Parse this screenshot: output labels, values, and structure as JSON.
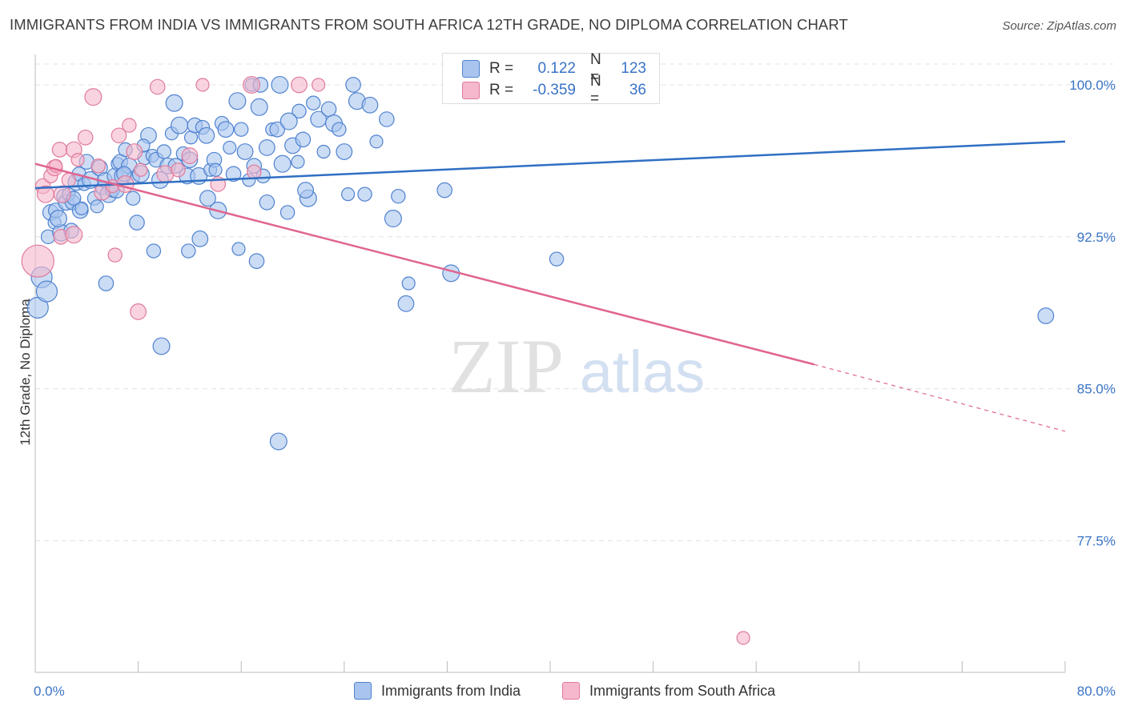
{
  "title": "IMMIGRANTS FROM INDIA VS IMMIGRANTS FROM SOUTH AFRICA 12TH GRADE, NO DIPLOMA CORRELATION CHART",
  "source": "Source: ZipAtlas.com",
  "watermark": {
    "zip": "ZIP",
    "atlas": "atlas"
  },
  "legend": {
    "rows": [
      {
        "r_label": "R =",
        "r_value": "0.122",
        "n_label": "N =",
        "n_value": "123"
      },
      {
        "r_label": "R =",
        "r_value": "-0.359",
        "n_label": "N =",
        "n_value": "36"
      }
    ]
  },
  "bottom_legend": [
    "Immigrants from India",
    "Immigrants from South Africa"
  ],
  "colors": {
    "india_fill": "#a9c4ee",
    "india_stroke": "#4f82cf",
    "india_line": "#2f6fc4",
    "sa_fill": "#f5b8cc",
    "sa_stroke": "#e07a9c",
    "sa_line": "#e0648f",
    "tick_label": "#3a73c6",
    "grid": "#e3e3e3"
  },
  "chart_data": {
    "type": "scatter",
    "xlabel": "",
    "ylabel": "12th Grade, No Diploma",
    "xlim": [
      0,
      80
    ],
    "ylim": [
      71,
      101.5
    ],
    "x_tick_labels": [
      {
        "value": 0,
        "label": "0.0%"
      },
      {
        "value": 80,
        "label": "80.0%"
      }
    ],
    "y_tick_labels": [
      {
        "value": 100,
        "label": "100.0%"
      },
      {
        "value": 92.5,
        "label": "92.5%"
      },
      {
        "value": 85,
        "label": "85.0%"
      },
      {
        "value": 77.5,
        "label": "77.5%"
      }
    ],
    "grid": true,
    "legend_position": "top-center",
    "series": [
      {
        "name": "Immigrants from India",
        "trend": {
          "x": [
            0,
            80
          ],
          "y": [
            94.9,
            97.2
          ]
        },
        "points": [
          [
            0.2,
            89.0
          ],
          [
            0.5,
            90.5
          ],
          [
            0.9,
            89.8
          ],
          [
            1.0,
            92.5
          ],
          [
            1.2,
            93.7
          ],
          [
            1.5,
            93.2
          ],
          [
            1.6,
            93.8
          ],
          [
            2.0,
            92.7
          ],
          [
            2.2,
            94.5
          ],
          [
            2.4,
            94.2
          ],
          [
            2.6,
            94.6
          ],
          [
            2.9,
            94.2
          ],
          [
            3.2,
            95.2
          ],
          [
            3.4,
            95.6
          ],
          [
            3.5,
            93.8
          ],
          [
            3.8,
            95.1
          ],
          [
            4.0,
            96.2
          ],
          [
            4.3,
            95.3
          ],
          [
            4.6,
            94.4
          ],
          [
            5.0,
            95.9
          ],
          [
            5.2,
            94.9
          ],
          [
            5.4,
            95.3
          ],
          [
            5.7,
            94.6
          ],
          [
            6.0,
            94.8
          ],
          [
            6.2,
            95.5
          ],
          [
            6.4,
            96.1
          ],
          [
            6.6,
            96.2
          ],
          [
            6.8,
            95.5
          ],
          [
            7.0,
            96.8
          ],
          [
            7.3,
            96.0
          ],
          [
            7.6,
            95.4
          ],
          [
            7.9,
            93.2
          ],
          [
            8.2,
            95.6
          ],
          [
            8.5,
            96.4
          ],
          [
            8.8,
            97.5
          ],
          [
            9.1,
            96.5
          ],
          [
            9.4,
            96.3
          ],
          [
            9.7,
            95.3
          ],
          [
            10.0,
            96.7
          ],
          [
            10.3,
            96.0
          ],
          [
            10.6,
            97.6
          ],
          [
            10.9,
            96.0
          ],
          [
            11.2,
            98.0
          ],
          [
            11.5,
            96.6
          ],
          [
            11.8,
            95.5
          ],
          [
            12.1,
            97.4
          ],
          [
            12.4,
            98.0
          ],
          [
            12.7,
            95.5
          ],
          [
            13.0,
            97.9
          ],
          [
            13.3,
            97.5
          ],
          [
            13.6,
            95.8
          ],
          [
            13.9,
            96.3
          ],
          [
            14.2,
            93.8
          ],
          [
            14.5,
            98.1
          ],
          [
            14.8,
            97.8
          ],
          [
            15.1,
            96.9
          ],
          [
            15.4,
            95.6
          ],
          [
            15.7,
            99.2
          ],
          [
            16.0,
            97.8
          ],
          [
            16.3,
            96.7
          ],
          [
            16.6,
            95.3
          ],
          [
            17.0,
            96.0
          ],
          [
            17.4,
            98.9
          ],
          [
            17.7,
            95.5
          ],
          [
            18.0,
            96.9
          ],
          [
            18.4,
            97.8
          ],
          [
            18.8,
            97.8
          ],
          [
            19.2,
            96.1
          ],
          [
            19.6,
            93.7
          ],
          [
            20.0,
            97.0
          ],
          [
            20.4,
            96.2
          ],
          [
            20.8,
            97.3
          ],
          [
            21.2,
            94.4
          ],
          [
            21.6,
            99.1
          ],
          [
            22.0,
            98.3
          ],
          [
            22.4,
            96.7
          ],
          [
            22.8,
            98.8
          ],
          [
            23.2,
            98.1
          ],
          [
            23.6,
            97.8
          ],
          [
            24.0,
            96.7
          ],
          [
            24.3,
            94.6
          ],
          [
            24.7,
            100.0
          ],
          [
            25.0,
            99.2
          ],
          [
            25.6,
            94.6
          ],
          [
            26.0,
            99.0
          ],
          [
            26.5,
            97.2
          ],
          [
            27.3,
            98.3
          ],
          [
            27.8,
            93.4
          ],
          [
            28.2,
            94.5
          ],
          [
            28.8,
            89.2
          ],
          [
            29.0,
            90.2
          ],
          [
            31.8,
            94.8
          ],
          [
            32.3,
            90.7
          ],
          [
            40.5,
            91.4
          ],
          [
            78.5,
            88.6
          ],
          [
            3.6,
            93.9
          ],
          [
            5.5,
            90.2
          ],
          [
            9.8,
            87.1
          ],
          [
            11.9,
            91.8
          ],
          [
            12.8,
            92.4
          ],
          [
            15.8,
            91.9
          ],
          [
            17.2,
            91.3
          ],
          [
            18.9,
            82.4
          ],
          [
            9.2,
            91.8
          ],
          [
            13.4,
            94.4
          ],
          [
            16.8,
            100.0
          ],
          [
            17.5,
            100.0
          ],
          [
            19.0,
            100.0
          ],
          [
            20.5,
            98.7
          ],
          [
            21.0,
            94.8
          ],
          [
            8.4,
            97.0
          ],
          [
            6.9,
            95.6
          ],
          [
            10.8,
            99.1
          ],
          [
            7.6,
            94.4
          ],
          [
            6.3,
            94.8
          ],
          [
            4.8,
            94.0
          ],
          [
            2.8,
            92.8
          ],
          [
            1.8,
            93.4
          ],
          [
            3.0,
            94.4
          ],
          [
            12.0,
            96.3
          ],
          [
            14.0,
            95.8
          ],
          [
            18.0,
            94.2
          ],
          [
            19.7,
            98.2
          ]
        ]
      },
      {
        "name": "Immigrants from South Africa",
        "trend": {
          "x": [
            0,
            60.5
          ],
          "y": [
            96.1,
            86.2
          ]
        },
        "trend_dashed": {
          "x": [
            60.5,
            80
          ],
          "y": [
            86.2,
            82.9
          ]
        },
        "points": [
          [
            0.2,
            91.3
          ],
          [
            0.6,
            95.0
          ],
          [
            0.8,
            94.6
          ],
          [
            1.2,
            95.5
          ],
          [
            1.5,
            95.9
          ],
          [
            1.6,
            96.0
          ],
          [
            1.9,
            96.8
          ],
          [
            2.1,
            94.6
          ],
          [
            2.6,
            95.3
          ],
          [
            3.0,
            96.8
          ],
          [
            3.3,
            96.3
          ],
          [
            3.9,
            97.4
          ],
          [
            4.5,
            99.4
          ],
          [
            4.9,
            96.0
          ],
          [
            5.2,
            94.7
          ],
          [
            6.0,
            95.0
          ],
          [
            6.5,
            97.5
          ],
          [
            7.0,
            95.1
          ],
          [
            7.3,
            98.0
          ],
          [
            7.7,
            96.7
          ],
          [
            8.2,
            95.8
          ],
          [
            9.5,
            99.9
          ],
          [
            10.1,
            95.6
          ],
          [
            11.1,
            95.8
          ],
          [
            12.0,
            96.5
          ],
          [
            13.0,
            100.0
          ],
          [
            14.2,
            95.1
          ],
          [
            16.8,
            100.0
          ],
          [
            17.0,
            95.7
          ],
          [
            20.5,
            100.0
          ],
          [
            22.0,
            100.0
          ],
          [
            2.0,
            92.5
          ],
          [
            3.0,
            92.6
          ],
          [
            6.2,
            91.6
          ],
          [
            8.0,
            88.8
          ],
          [
            55.0,
            72.7
          ]
        ]
      }
    ]
  }
}
